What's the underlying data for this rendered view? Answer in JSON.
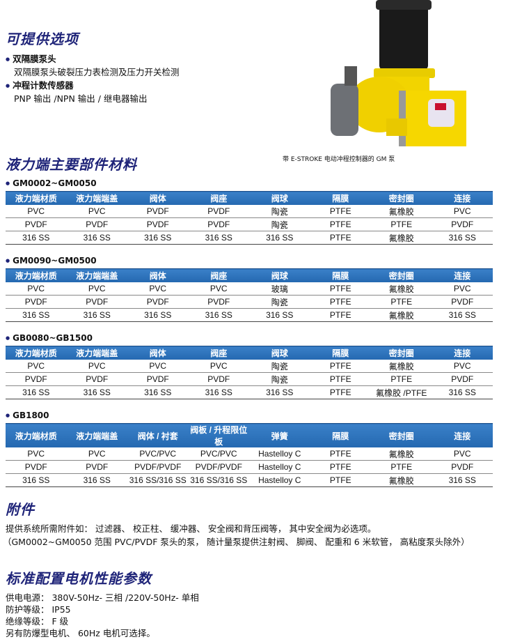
{
  "options": {
    "title": "可提供选项",
    "items": [
      {
        "label": "双隔膜泵头",
        "detail": "双隔膜泵头破裂压力表检测及压力开关检测"
      },
      {
        "label": "冲程计数传感器",
        "detail": "PNP 输出 /NPN 输出 / 继电器输出"
      }
    ]
  },
  "image_caption": "带 E-STROKE 电动冲程控制器的 GM 泵",
  "materials": {
    "title": "液力端主要部件材料",
    "tables": [
      {
        "model": "GM0002~GM0050",
        "headers": [
          "液力端材质",
          "液力端端盖",
          "阀体",
          "阀座",
          "阀球",
          "隔膜",
          "密封圈",
          "连接"
        ],
        "rows": [
          [
            "PVC",
            "PVC",
            "PVDF",
            "PVDF",
            "陶瓷",
            "PTFE",
            "氟橡胶",
            "PVC"
          ],
          [
            "PVDF",
            "PVDF",
            "PVDF",
            "PVDF",
            "陶瓷",
            "PTFE",
            "PTFE",
            "PVDF"
          ],
          [
            "316 SS",
            "316 SS",
            "316 SS",
            "316 SS",
            "316 SS",
            "PTFE",
            "氟橡胶",
            "316 SS"
          ]
        ]
      },
      {
        "model": "GM0090~GM0500",
        "headers": [
          "液力端材质",
          "液力端端盖",
          "阀体",
          "阀座",
          "阀球",
          "隔膜",
          "密封圈",
          "连接"
        ],
        "rows": [
          [
            "PVC",
            "PVC",
            "PVC",
            "PVC",
            "玻璃",
            "PTFE",
            "氟橡胶",
            "PVC"
          ],
          [
            "PVDF",
            "PVDF",
            "PVDF",
            "PVDF",
            "陶瓷",
            "PTFE",
            "PTFE",
            "PVDF"
          ],
          [
            "316 SS",
            "316 SS",
            "316 SS",
            "316 SS",
            "316 SS",
            "PTFE",
            "氟橡胶",
            "316 SS"
          ]
        ]
      },
      {
        "model": "GB0080~GB1500",
        "headers": [
          "液力端材质",
          "液力端端盖",
          "阀体",
          "阀座",
          "阀球",
          "隔膜",
          "密封圈",
          "连接"
        ],
        "rows": [
          [
            "PVC",
            "PVC",
            "PVC",
            "PVC",
            "陶瓷",
            "PTFE",
            "氟橡胶",
            "PVC"
          ],
          [
            "PVDF",
            "PVDF",
            "PVDF",
            "PVDF",
            "陶瓷",
            "PTFE",
            "PTFE",
            "PVDF"
          ],
          [
            "316 SS",
            "316 SS",
            "316 SS",
            "316 SS",
            "316 SS",
            "PTFE",
            "氟橡胶 /PTFE",
            "316 SS"
          ]
        ]
      },
      {
        "model": "GB1800",
        "headers": [
          "液力端材质",
          "液力端端盖",
          "阀体 / 衬套",
          "阀板 / 升程限位板",
          "弹簧",
          "隔膜",
          "密封圈",
          "连接"
        ],
        "rows": [
          [
            "PVC",
            "PVC",
            "PVC/PVC",
            "PVC/PVC",
            "Hastelloy C",
            "PTFE",
            "氟橡胶",
            "PVC"
          ],
          [
            "PVDF",
            "PVDF",
            "PVDF/PVDF",
            "PVDF/PVDF",
            "Hastelloy C",
            "PTFE",
            "PTFE",
            "PVDF"
          ],
          [
            "316 SS",
            "316 SS",
            "316 SS/316 SS",
            "316 SS/316 SS",
            "Hastelloy C",
            "PTFE",
            "氟橡胶",
            "316 SS"
          ]
        ]
      }
    ]
  },
  "accessories": {
    "title": "附件",
    "lines": [
      "提供系统所需附件如： 过滤器、 校正柱、 缓冲器、 安全阀和背压阀等， 其中安全阀为必选项。",
      "（GM0002~GM0050 范围 PVC/PVDF 泵头的泵， 随计量泵提供注射阀、 脚阀、 配重和 6 米软管， 高粘度泵头除外）"
    ]
  },
  "motor": {
    "title": "标准配置电机性能参数",
    "lines": [
      "供电电源： 380V-50Hz- 三相 /220V-50Hz- 单相",
      "防护等级： IP55",
      "绝缘等级： F 级",
      "另有防爆型电机、 60Hz 电机可选择。"
    ]
  },
  "colors": {
    "heading": "#1e2378",
    "table_header": "#2a6fb8",
    "pump_body": "#f2d400"
  }
}
